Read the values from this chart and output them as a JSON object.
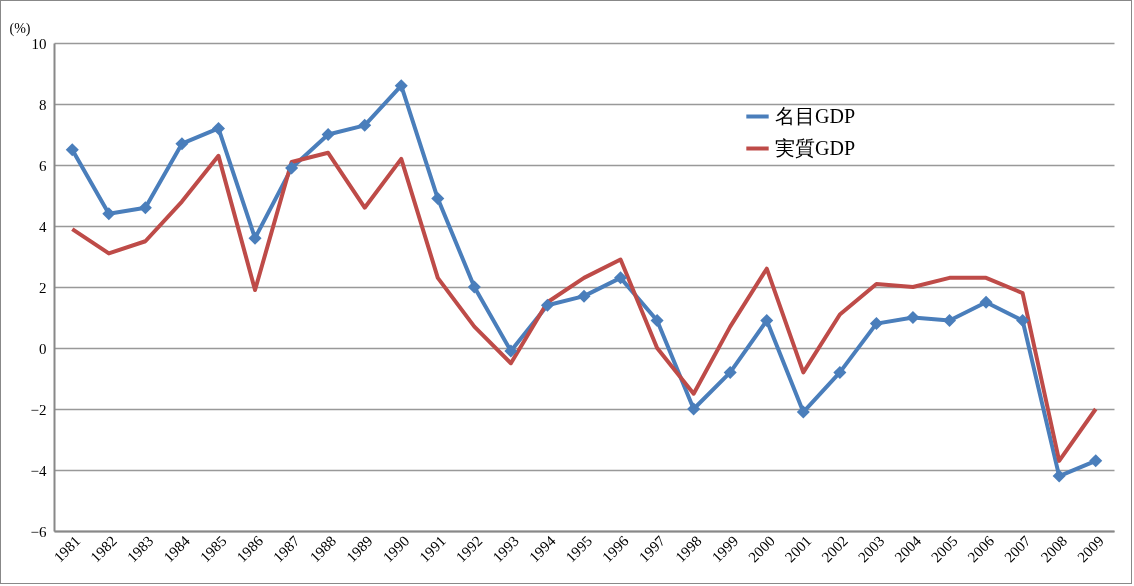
{
  "chart_data": {
    "type": "line",
    "ylabel": "(%)",
    "categories": [
      "1981",
      "1982",
      "1983",
      "1984",
      "1985",
      "1986",
      "1987",
      "1988",
      "1989",
      "1990",
      "1991",
      "1992",
      "1993",
      "1994",
      "1995",
      "1996",
      "1997",
      "1998",
      "1999",
      "2000",
      "2001",
      "2002",
      "2003",
      "2004",
      "2005",
      "2006",
      "2007",
      "2008",
      "2009"
    ],
    "series": [
      {
        "name": "名目GDP",
        "color": "#4a7ebb",
        "marker": "diamond",
        "values": [
          6.5,
          4.4,
          4.6,
          6.7,
          7.2,
          3.6,
          5.9,
          7.0,
          7.3,
          8.6,
          4.9,
          2.0,
          -0.1,
          1.4,
          1.7,
          2.3,
          0.9,
          -2.0,
          -0.8,
          0.9,
          -2.1,
          -0.8,
          0.8,
          1.0,
          0.9,
          1.5,
          0.9,
          -4.2,
          -3.7
        ]
      },
      {
        "name": "実質GDP",
        "color": "#be4b48",
        "values": [
          3.9,
          3.1,
          3.5,
          4.8,
          6.3,
          1.9,
          6.1,
          6.4,
          4.6,
          6.2,
          2.3,
          0.7,
          -0.5,
          1.5,
          2.3,
          2.9,
          0.0,
          -1.5,
          0.7,
          2.6,
          -0.8,
          1.1,
          2.1,
          2.0,
          2.3,
          2.3,
          1.8,
          -3.7,
          -2.0
        ]
      }
    ],
    "ylim": [
      -6,
      10
    ],
    "yticks": [
      -6,
      -4,
      -2,
      0,
      2,
      4,
      6,
      8,
      10
    ],
    "grid": "y",
    "legend": "top right"
  }
}
